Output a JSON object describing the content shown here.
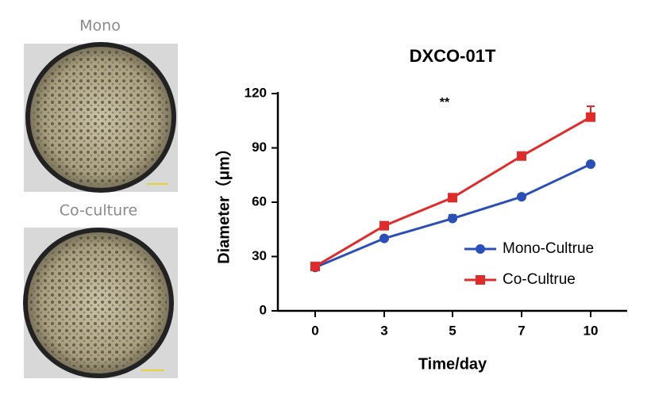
{
  "panels": {
    "top_label": "Mono",
    "bottom_label": "Co-culture"
  },
  "chart_data": {
    "type": "line",
    "title": "DXCO-01T",
    "x_label": "Time/day",
    "y_label": "Diameter（μm）",
    "categories": [
      "0",
      "3",
      "5",
      "7",
      "10"
    ],
    "series": [
      {
        "name": "Mono-Cultrue",
        "color": "#2b4fb8",
        "marker": "circle",
        "values": [
          24,
          40,
          51,
          63,
          81
        ],
        "errors": [
          1,
          1,
          2,
          1,
          1
        ]
      },
      {
        "name": "Co-Cultrue",
        "color": "#e02b2b",
        "marker": "square",
        "values": [
          24.5,
          47,
          62.5,
          85.5,
          107
        ],
        "errors": [
          1,
          1,
          1,
          1,
          6
        ]
      }
    ],
    "ylim": [
      0,
      120
    ],
    "yticks": [
      0,
      30,
      60,
      90,
      120
    ],
    "annotation": "**",
    "legend": "lower right",
    "grid": false
  }
}
